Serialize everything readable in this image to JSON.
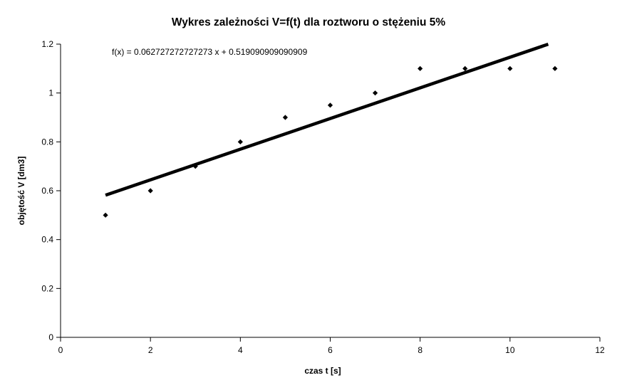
{
  "chart_data": {
    "type": "scatter",
    "title": "Wykres zależności V=f(t) dla roztworu o stężeniu 5%",
    "xlabel": "czas t [s]",
    "ylabel": "objętość V [dm3]",
    "xlim": [
      0,
      12
    ],
    "ylim": [
      0,
      1.2
    ],
    "x_ticks": [
      0,
      2,
      4,
      6,
      8,
      10,
      12
    ],
    "y_ticks": [
      0,
      0.2,
      0.4,
      0.6,
      0.8,
      1,
      1.2
    ],
    "x_tick_labels": [
      "0",
      "2",
      "4",
      "6",
      "8",
      "10",
      "12"
    ],
    "y_tick_labels": [
      "0",
      "0.2",
      "0.4",
      "0.6",
      "0.8",
      "1",
      "1.2"
    ],
    "grid": false,
    "legend": "none",
    "series": [
      {
        "x": [
          1,
          2,
          3,
          4,
          5,
          6,
          7,
          8,
          9,
          10,
          11
        ],
        "y": [
          0.5,
          0.6,
          0.7,
          0.8,
          0.9,
          0.95,
          1.0,
          1.1,
          1.1,
          1.1,
          1.1
        ],
        "color": "#000000",
        "marker": "diamond"
      }
    ],
    "trendline": {
      "type": "linear",
      "slope": 0.062727272727273,
      "intercept": 0.519090909090909,
      "x_range": [
        1,
        10.85
      ],
      "equation_label": "f(x) = 0.062727272727273 x + 0.519090909090909",
      "color": "#000000"
    }
  }
}
